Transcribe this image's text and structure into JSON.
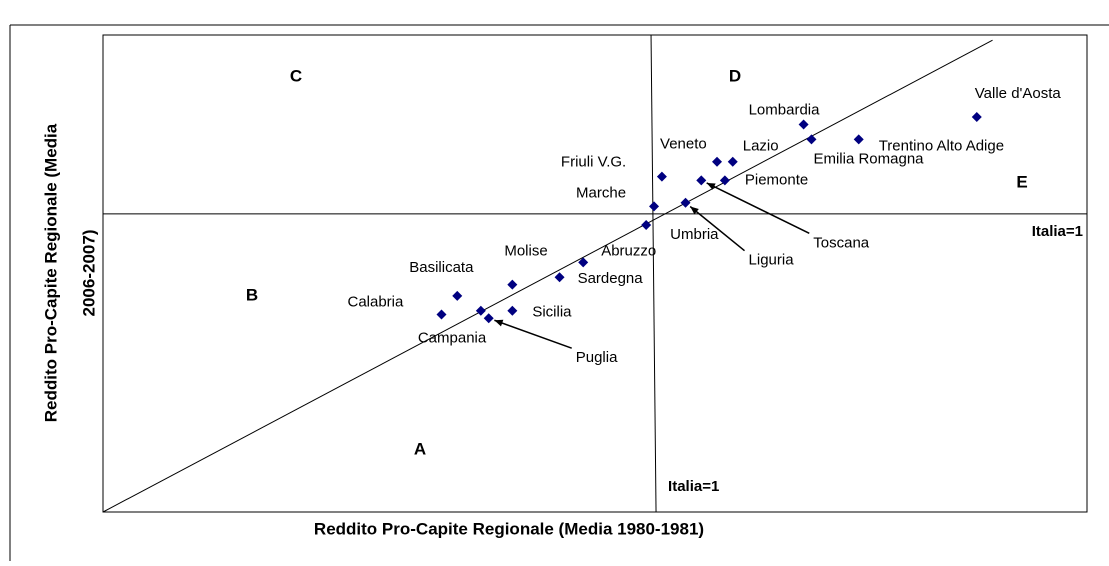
{
  "chart_data": {
    "type": "scatter",
    "x_label": "Reddito Pro-Capite Regionale (Media 1980-1981)",
    "y_label_lines": [
      "Reddito Pro-Capite Regionale (Media",
      "2006-2007)"
    ],
    "labels": [
      "Valle d'Aosta",
      "Lombardia",
      "Lazio",
      "Emilia Romagna",
      "Trentino Alto Adige",
      "Veneto",
      "Piemonte",
      "Toscana",
      "Liguria",
      "Friuli V.G.",
      "Marche",
      "Umbria",
      "Abruzzo",
      "Sardegna",
      "Molise",
      "Basilicata",
      "Calabria",
      "Sicilia",
      "Campania",
      "Puglia"
    ],
    "x": [
      1.41,
      1.19,
      1.1,
      1.2,
      1.26,
      1.08,
      1.09,
      1.06,
      1.04,
      1.01,
      1.0,
      0.99,
      0.91,
      0.88,
      0.82,
      0.75,
      0.73,
      0.82,
      0.78,
      0.79
    ],
    "y": [
      1.26,
      1.24,
      1.14,
      1.2,
      1.2,
      1.14,
      1.09,
      1.09,
      1.03,
      1.1,
      1.02,
      0.97,
      0.87,
      0.83,
      0.81,
      0.78,
      0.73,
      0.74,
      0.74,
      0.72
    ],
    "color": "#000080",
    "xlim": [
      0.3,
      1.55
    ],
    "ylim": [
      0.2,
      1.48
    ],
    "reference_x": 1,
    "reference_y": 1,
    "diagonal": [
      [
        0.3,
        0.2
      ],
      [
        1.43,
        1.466
      ]
    ],
    "reference_labels": [
      "Italia=1",
      "Italia=1"
    ],
    "quadrant_labels": [
      "A",
      "B",
      "C",
      "D",
      "E"
    ]
  }
}
